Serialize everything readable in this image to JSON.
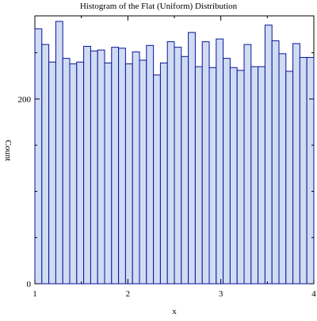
{
  "chart_data": {
    "type": "bar",
    "title": "Histogram of the Flat (Uniform) Distribution",
    "xlabel": "x",
    "ylabel": "Count",
    "xlim": [
      1,
      4
    ],
    "ylim": [
      0,
      290
    ],
    "x_ticks": [
      1,
      2,
      3,
      4
    ],
    "y_ticks": [
      0,
      200
    ],
    "grid": false,
    "legend": "none",
    "bin_start": 1.0,
    "bin_width": 0.075,
    "values": [
      276,
      259,
      240,
      284,
      244,
      238,
      240,
      257,
      252,
      253,
      239,
      256,
      255,
      238,
      251,
      242,
      258,
      226,
      239,
      262,
      256,
      246,
      272,
      235,
      262,
      234,
      265,
      244,
      234,
      231,
      259,
      235,
      235,
      280,
      263,
      249,
      230,
      260,
      245,
      245
    ],
    "colors": {
      "bar_fill": "#d0dcf4",
      "bar_stroke": "#0a1496",
      "axis": "#000000"
    }
  }
}
